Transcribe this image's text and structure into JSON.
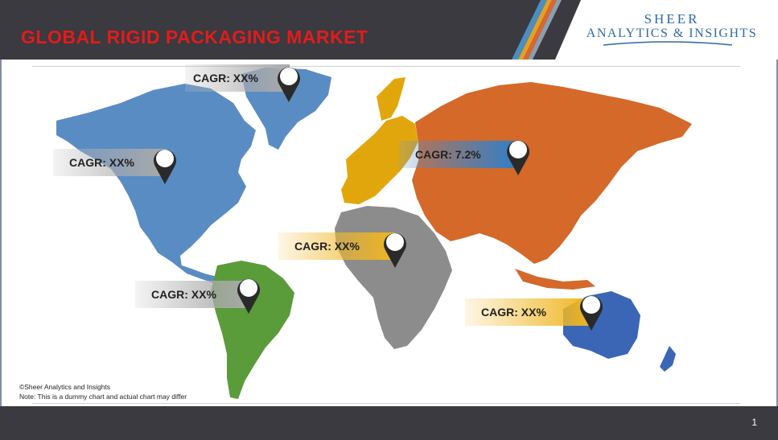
{
  "header": {
    "title": "GLOBAL RIGID PACKAGING MARKET",
    "logo_line1": "SHEER",
    "logo_line2": "ANALYTICS & INSIGHTS"
  },
  "regions": {
    "north_america_north": {
      "label": "CAGR: XX%",
      "color": "#5a8cc4"
    },
    "north_america": {
      "label": "CAGR: XX%",
      "color": "#5a8cc4"
    },
    "south_america": {
      "label": "CAGR: XX%",
      "color": "#5a9b3a"
    },
    "africa": {
      "label": "CAGR: XX%",
      "color": "#8c8c8c"
    },
    "europe": {
      "color": "#e2a60d"
    },
    "asia": {
      "label": "CAGR: 7.2%",
      "color": "#d4692a"
    },
    "oceania": {
      "label": "CAGR: XX%",
      "color": "#3a66b5"
    }
  },
  "footnotes": {
    "copyright": "©Sheer Analytics and Insights",
    "note": "Note: This is a dummy chart and actual chart may differ"
  },
  "footer": {
    "page_number": "1"
  }
}
